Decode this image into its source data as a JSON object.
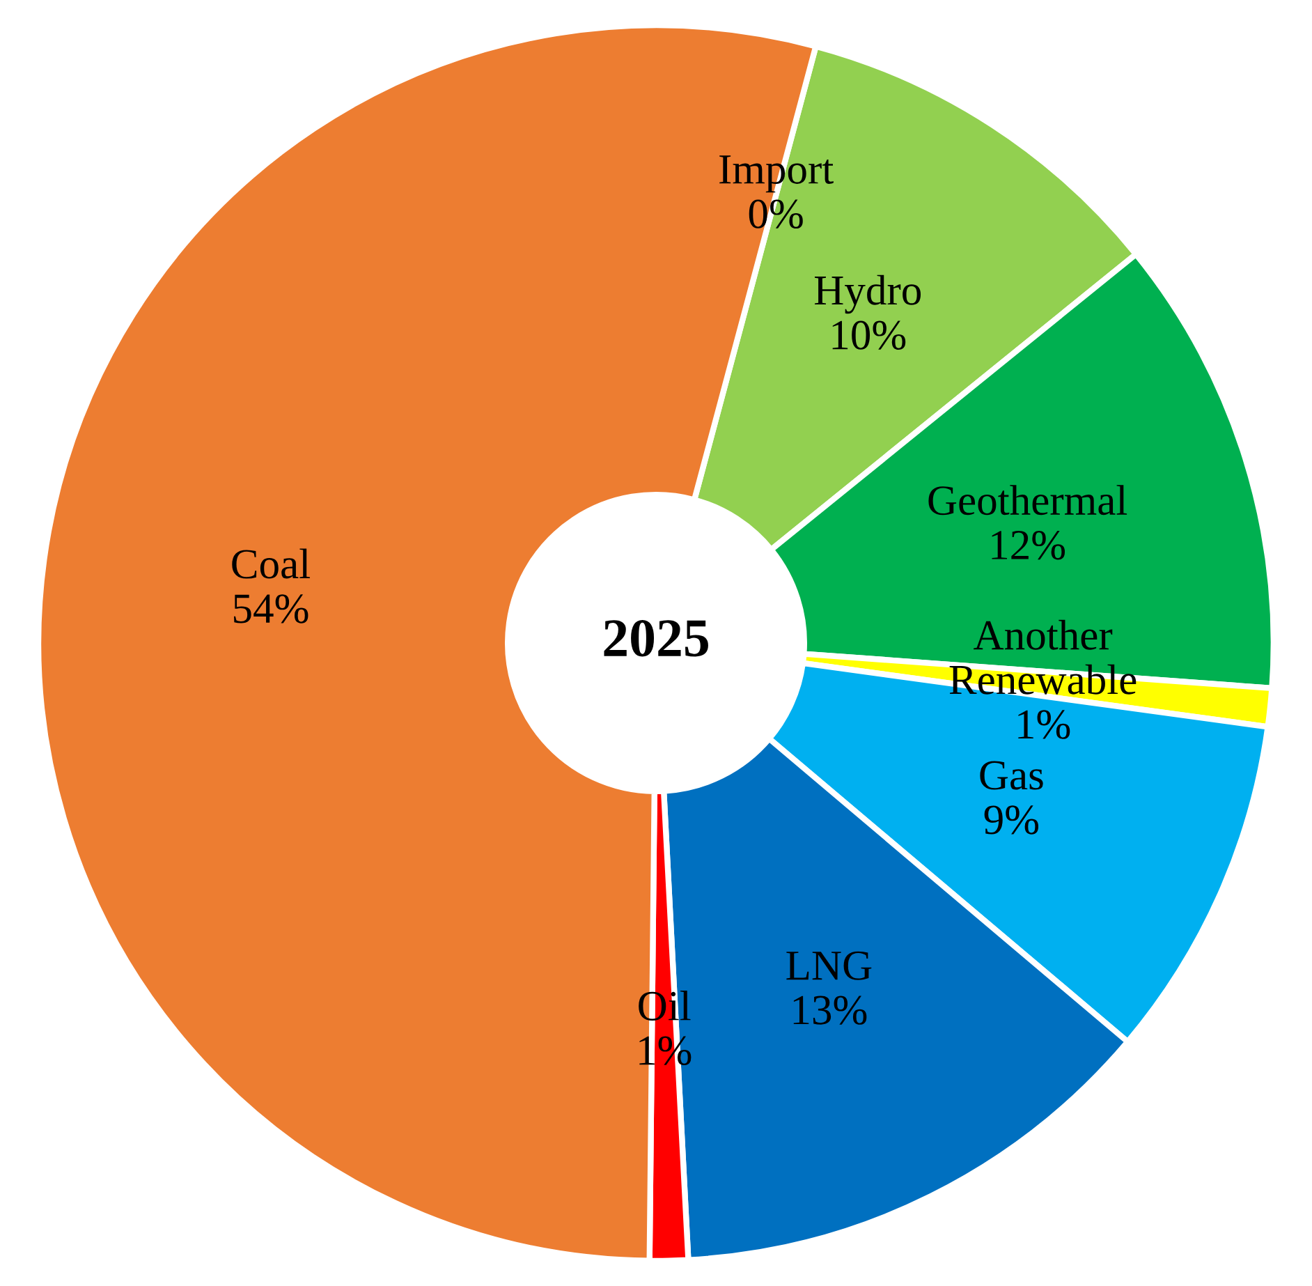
{
  "chart_data": {
    "type": "donut",
    "title": "2025",
    "categories": [
      "Import",
      "Hydro",
      "Geothermal",
      "Another Renewable",
      "Gas",
      "LNG",
      "Oil",
      "Coal"
    ],
    "values": [
      0,
      10,
      12,
      1,
      9,
      13,
      1,
      54
    ],
    "value_labels": [
      "0%",
      "10%",
      "12%",
      "1%",
      "9%",
      "13%",
      "1%",
      "54%"
    ],
    "colors": [
      "#7030a0",
      "#92d050",
      "#00b050",
      "#ffff00",
      "#00b0f0",
      "#0070c0",
      "#ff0000",
      "#ed7d31"
    ],
    "legend": false
  }
}
